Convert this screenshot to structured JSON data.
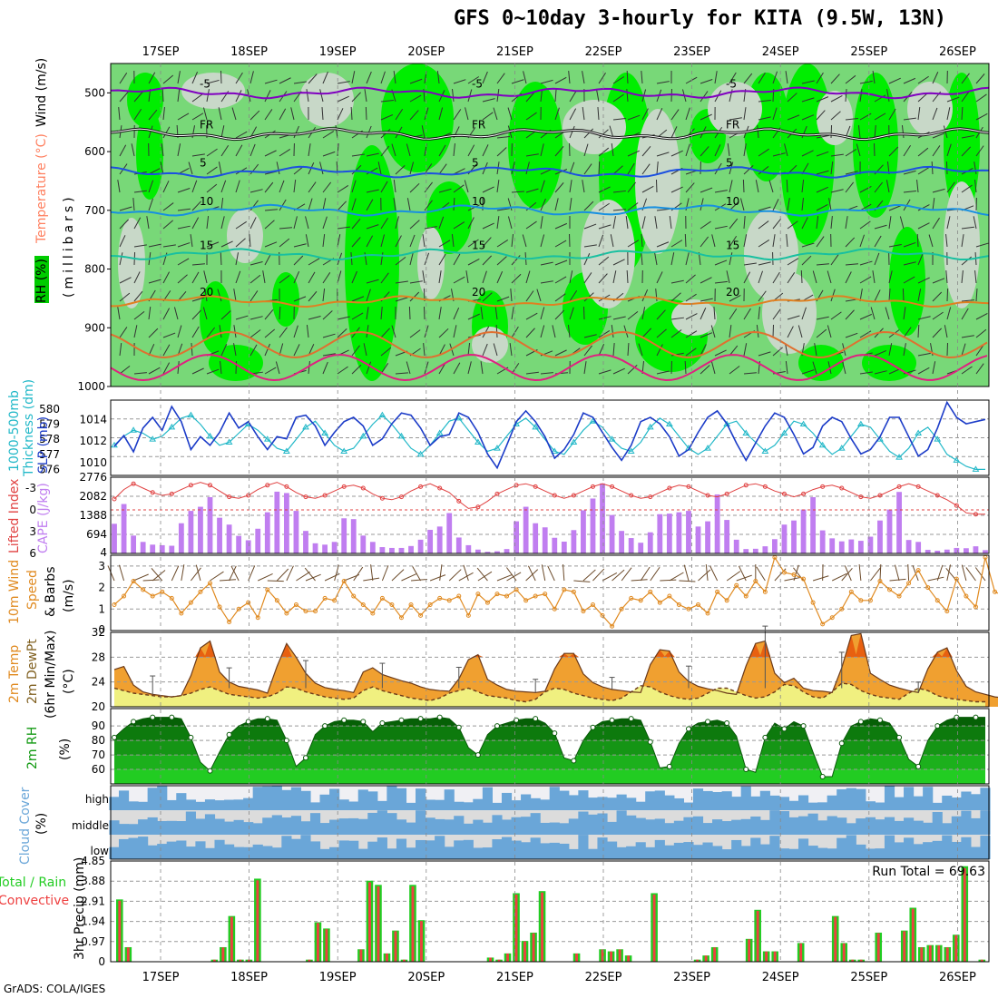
{
  "title": "GFS 0~10day 3-hourly for KITA (9.5W, 13N)",
  "credit": "GrADS: COLA/IGES",
  "dates": [
    "17SEP",
    "18SEP",
    "19SEP",
    "20SEP",
    "21SEP",
    "22SEP",
    "23SEP",
    "24SEP",
    "25SEP",
    "26SEP"
  ],
  "colors": {
    "rh_light": "#c8d8c8",
    "rh_mid": "#78d878",
    "rh_bright": "#00ee00",
    "slp": "#1c3cc8",
    "thickness": "#22b8c8",
    "lifted": "#e04040",
    "cape": "#c07ef0",
    "wind10": "#e08a20",
    "temp": "#f0a030",
    "temp_hot": "#e86010",
    "dew": "#f0f080",
    "rh2m": "#119911",
    "cloud": "#6aa6d8",
    "cloud_bg": "#dcdcdc",
    "precip_total": "#22cc22",
    "precip_conv": "#ee4040"
  },
  "labels": {
    "p1_rh": "RH (%)",
    "p1_temp": "Temperature (°C)",
    "p1_wind": "Wind (m/s)",
    "p1_units": "(millibars)",
    "p2_thick": "1000-500mb",
    "p2_thick2": "Thickness (dm)",
    "p2_slp": "SLP (mb)",
    "p3_lifted": "Lifted Index",
    "p3_cape": "CAPE (J/kg)",
    "p4_a": "10m Wind",
    "p4_b": "Speed",
    "p4_c": "& Barbs",
    "p4_units": "(m/s)",
    "p5_a": "2m Temp",
    "p5_b": "2m DewPt",
    "p5_c": "(6hr Min/Max)",
    "p5_units": "(°C)",
    "p6_a": "2m RH",
    "p6_units": "(%)",
    "p7_a": "Cloud Cover",
    "p7_units": "(%)",
    "p8_a": "Total / Rain",
    "p8_b": "Convective",
    "p8_units": "3hr Precip (mm)",
    "run_total": "Run Total = 69.63",
    "cloud_high": "high",
    "cloud_middle": "middle",
    "cloud_low": "low"
  },
  "chart_data": [
    {
      "type": "heatmap",
      "panel": "pressure-cross-section",
      "y_axis": "millibars",
      "ylim": [
        1000,
        450
      ],
      "y_ticks": [
        500,
        600,
        700,
        800,
        900,
        1000
      ],
      "temperature_contours": [
        {
          "label": "-5",
          "level_mb": 500
        },
        {
          "label": "FR",
          "level_mb": 570
        },
        {
          "label": "5",
          "level_mb": 635
        },
        {
          "label": "10",
          "level_mb": 700
        },
        {
          "label": "15",
          "level_mb": 775
        },
        {
          "label": "20",
          "level_mb": 855
        }
      ],
      "grid": true
    },
    {
      "type": "line",
      "panel": "slp-thickness",
      "slp_ticks": [
        1010,
        1012,
        1014
      ],
      "thickness_ticks": [
        576,
        577,
        578,
        579,
        580
      ],
      "series": [
        {
          "name": "SLP (mb)",
          "values": [
            1011.5,
            1012.5,
            1011,
            1013.2,
            1014.2,
            1013,
            1015.2,
            1013.8,
            1011.2,
            1012.4,
            1011.6,
            1012.8,
            1014.6,
            1013.2,
            1013.8,
            1012.4,
            1011.2,
            1012.4,
            1012.2,
            1014.2,
            1014.4,
            1013.4,
            1011.6,
            1012.8,
            1013.8,
            1014.2,
            1013.4,
            1011.6,
            1012.2,
            1013.6,
            1014.6,
            1014.4,
            1013.2,
            1011.6,
            1012.4,
            1012.6,
            1014.6,
            1014.2,
            1012.8,
            1010.8,
            1009.5,
            1011.6,
            1013.8,
            1014.8,
            1013.8,
            1012.4,
            1010.4,
            1011.2,
            1012.6,
            1014.6,
            1014.2,
            1012.8,
            1011.4,
            1010.2,
            1011.6,
            1013.8,
            1014.2,
            1013.6,
            1012.4,
            1010.6,
            1011.2,
            1012.8,
            1014.2,
            1014.8,
            1013.6,
            1011.8,
            1010.2,
            1011.8,
            1013.4,
            1014.6,
            1014.2,
            1012.6,
            1010.8,
            1011.4,
            1013.4,
            1014.2,
            1013.8,
            1012.2,
            1010.8,
            1011.2,
            1012.4,
            1014.2,
            1014.2,
            1012.4,
            1010.6,
            1011.2,
            1013.2,
            1015.6,
            1014.2,
            1013.6,
            1013.8,
            1014.0
          ]
        },
        {
          "name": "Thickness (dm)",
          "values": [
            577.6,
            578.2,
            578.6,
            578.4,
            578.0,
            578.2,
            578.8,
            579.4,
            579.6,
            579.0,
            578.2,
            577.6,
            577.8,
            578.4,
            579.0,
            578.6,
            578.0,
            577.4,
            577.2,
            578.0,
            578.8,
            579.2,
            578.4,
            577.6,
            577.2,
            577.4,
            578.2,
            579.0,
            579.6,
            579.0,
            578.2,
            577.4,
            577.0,
            577.6,
            578.4,
            579.2,
            579.4,
            578.6,
            577.8,
            577.2,
            577.4,
            578.2,
            579.0,
            579.4,
            578.8,
            578.0,
            577.2,
            577.0,
            577.8,
            578.6,
            579.2,
            578.8,
            578.0,
            577.4,
            577.2,
            577.8,
            578.8,
            579.4,
            579.0,
            578.2,
            577.4,
            577.0,
            577.4,
            578.2,
            579.0,
            579.2,
            578.4,
            577.8,
            577.2,
            577.6,
            578.4,
            579.2,
            579.0,
            578.4,
            577.6,
            577.0,
            577.4,
            578.2,
            579.0,
            578.8,
            578.0,
            577.2,
            576.8,
            577.4,
            578.4,
            578.8,
            578.0,
            577.0,
            576.6,
            576.2,
            576.0,
            576.0
          ]
        }
      ]
    },
    {
      "type": "bar",
      "panel": "lifted-index-cape",
      "cape_ticks": [
        694,
        1388,
        2082,
        2776
      ],
      "lifted_ticks": [
        -3,
        0,
        3,
        6
      ],
      "series": [
        {
          "name": "CAPE (J/kg)",
          "values": [
            1080,
            1800,
            650,
            420,
            320,
            300,
            280,
            1100,
            1550,
            1700,
            2050,
            1300,
            1050,
            640,
            480,
            900,
            1500,
            2250,
            2200,
            1550,
            820,
            370,
            320,
            420,
            1280,
            1250,
            650,
            420,
            230,
            200,
            200,
            270,
            500,
            860,
            980,
            1470,
            580,
            300,
            140,
            60,
            80,
            160,
            1170,
            1700,
            1100,
            950,
            570,
            430,
            850,
            1570,
            2000,
            2550,
            1400,
            820,
            560,
            390,
            770,
            1430,
            1450,
            1500,
            1550,
            980,
            1170,
            2150,
            1220,
            500,
            160,
            170,
            260,
            520,
            1050,
            1200,
            1600,
            2050,
            840,
            550,
            440,
            510,
            460,
            610,
            1200,
            1600,
            2240,
            490,
            420,
            130,
            100,
            140,
            200,
            190,
            260,
            120
          ]
        },
        {
          "name": "Lifted Index",
          "values": [
            -1.5,
            -2.8,
            -3.6,
            -3.0,
            -2.4,
            -2.0,
            -2.2,
            -2.8,
            -3.4,
            -3.8,
            -3.4,
            -2.6,
            -1.8,
            -1.6,
            -2.0,
            -2.8,
            -3.4,
            -3.8,
            -3.2,
            -2.4,
            -1.8,
            -1.6,
            -2.0,
            -2.6,
            -3.2,
            -3.4,
            -3.0,
            -2.2,
            -1.6,
            -1.4,
            -1.8,
            -2.6,
            -3.2,
            -3.6,
            -3.0,
            -2.4,
            -1.2,
            -0.2,
            -0.4,
            -1.2,
            -2.2,
            -2.8,
            -3.4,
            -3.6,
            -3.2,
            -2.6,
            -2.0,
            -1.6,
            -2.0,
            -2.6,
            -3.2,
            -3.6,
            -3.2,
            -2.6,
            -2.0,
            -1.6,
            -1.8,
            -2.4,
            -3.0,
            -3.4,
            -3.2,
            -2.6,
            -2.0,
            -1.8,
            -2.2,
            -2.8,
            -3.4,
            -3.6,
            -3.2,
            -2.6,
            -2.2,
            -1.8,
            -2.2,
            -2.8,
            -3.2,
            -3.4,
            -3.0,
            -2.4,
            -1.8,
            -1.6,
            -2.0,
            -2.6,
            -3.2,
            -3.6,
            -3.2,
            -2.6,
            -2.0,
            -1.4,
            -0.6,
            0.4,
            0.6,
            0.6
          ]
        }
      ]
    },
    {
      "type": "line",
      "panel": "10m-wind",
      "ylim": [
        0,
        3.5
      ],
      "y_ticks": [
        1,
        2,
        3
      ],
      "series": [
        {
          "name": "Speed",
          "values": [
            1.2,
            1.6,
            2.3,
            1.9,
            1.6,
            1.8,
            1.5,
            0.8,
            1.3,
            1.8,
            2.2,
            1.1,
            0.4,
            1.0,
            1.3,
            0.6,
            1.9,
            1.4,
            0.8,
            1.2,
            0.9,
            0.9,
            1.5,
            1.4,
            2.3,
            1.6,
            1.2,
            0.8,
            1.5,
            1.2,
            0.6,
            1.2,
            0.7,
            1.2,
            1.5,
            1.4,
            1.6,
            0.7,
            1.7,
            1.3,
            1.7,
            1.6,
            1.9,
            1.4,
            1.6,
            1.7,
            1.0,
            1.9,
            1.8,
            0.9,
            1.2,
            0.7,
            0.2,
            1.0,
            1.5,
            1.4,
            1.8,
            1.3,
            1.6,
            1.2,
            1.0,
            1.2,
            0.8,
            1.8,
            1.4,
            2.1,
            1.6,
            2.3,
            1.8,
            3.4,
            2.7,
            2.6,
            2.4,
            1.3,
            0.3,
            0.6,
            1.0,
            1.8,
            1.4,
            1.4,
            2.3,
            1.9,
            1.6,
            2.2,
            2.8,
            2.0,
            1.4,
            0.9,
            2.4,
            1.6,
            1.1,
            3.4,
            1.8,
            1.6,
            1.9,
            1.8
          ]
        }
      ]
    },
    {
      "type": "area",
      "panel": "2m-temp-dewpoint",
      "ylim": [
        20,
        32
      ],
      "y_ticks": [
        20,
        24,
        28,
        32
      ],
      "series": [
        {
          "name": "2m Temp",
          "values": [
            26.0,
            26.5,
            23.5,
            22.4,
            22.0,
            21.8,
            21.6,
            21.8,
            25.0,
            29.5,
            30.6,
            25.6,
            24.0,
            23.3,
            23.0,
            22.7,
            22.2,
            26.5,
            30.2,
            28.0,
            25.4,
            23.8,
            23.1,
            22.8,
            22.6,
            22.3,
            25.6,
            26.3,
            25.2,
            24.7,
            24.2,
            23.8,
            23.2,
            22.8,
            22.6,
            22.5,
            24.5,
            27.6,
            28.4,
            24.4,
            23.5,
            22.8,
            22.5,
            22.4,
            22.3,
            22.5,
            26.1,
            28.6,
            28.6,
            25.3,
            23.9,
            23.2,
            22.8,
            22.6,
            22.4,
            22.3,
            26.8,
            29.2,
            29.0,
            25.6,
            24.1,
            23.3,
            22.9,
            22.6,
            22.2,
            22.0,
            26.6,
            30.2,
            30.6,
            25.4,
            23.9,
            24.6,
            23.0,
            22.6,
            22.5,
            22.3,
            26.3,
            31.5,
            31.8,
            25.4,
            24.4,
            23.5,
            23.0,
            22.6,
            22.3,
            26.1,
            28.8,
            29.5,
            25.8,
            23.3,
            22.4,
            22.0,
            21.6,
            21.4
          ]
        },
        {
          "name": "2m DewPt",
          "values": [
            23.0,
            22.6,
            22.2,
            22.0,
            21.8,
            21.6,
            21.6,
            21.8,
            22.2,
            22.8,
            23.2,
            22.6,
            22.0,
            21.8,
            21.6,
            21.4,
            21.6,
            22.2,
            23.2,
            23.0,
            22.4,
            22.0,
            21.6,
            21.4,
            21.2,
            21.4,
            22.6,
            23.2,
            22.6,
            22.2,
            21.8,
            21.4,
            21.2,
            21.0,
            21.4,
            22.2,
            22.6,
            23.0,
            22.4,
            21.8,
            21.6,
            21.4,
            21.0,
            20.8,
            21.2,
            22.4,
            23.0,
            22.8,
            22.2,
            21.8,
            21.4,
            21.2,
            21.0,
            21.4,
            22.4,
            23.4,
            23.2,
            22.4,
            21.8,
            21.4,
            21.2,
            21.4,
            22.2,
            23.0,
            23.0,
            22.4,
            21.8,
            21.4,
            21.6,
            22.4,
            23.6,
            23.4,
            22.4,
            21.6,
            21.4,
            22.4,
            23.8,
            23.6,
            22.6,
            22.0,
            21.6,
            21.4,
            21.2,
            22.2,
            23.0,
            22.6,
            21.8,
            21.4,
            21.2,
            21.0,
            20.8,
            20.8
          ]
        }
      ]
    },
    {
      "type": "area",
      "panel": "2m-rh",
      "ylim": [
        50,
        100
      ],
      "y_ticks": [
        60,
        70,
        80,
        90
      ],
      "series": [
        {
          "name": "2m RH",
          "values": [
            82,
            88,
            93,
            95,
            96,
            96,
            96,
            95,
            82,
            65,
            59,
            72,
            84,
            90,
            93,
            95,
            95,
            94,
            80,
            62,
            68,
            84,
            90,
            93,
            94,
            94,
            93,
            86,
            92,
            93,
            94,
            95,
            95,
            95,
            96,
            95,
            89,
            75,
            70,
            84,
            90,
            92,
            94,
            95,
            95,
            92,
            85,
            68,
            66,
            80,
            89,
            93,
            94,
            95,
            95,
            94,
            79,
            61,
            62,
            78,
            88,
            92,
            93,
            94,
            92,
            83,
            60,
            58,
            82,
            92,
            88,
            93,
            90,
            72,
            55,
            55,
            78,
            90,
            93,
            95,
            94,
            92,
            82,
            67,
            62,
            80,
            90,
            94,
            96,
            96,
            96,
            96
          ]
        }
      ]
    },
    {
      "type": "area",
      "panel": "cloud-cover",
      "categories": [
        "high",
        "middle",
        "low"
      ]
    },
    {
      "type": "bar",
      "panel": "3hr-precip",
      "ylim": [
        0,
        4.85
      ],
      "y_ticks": [
        0,
        0.97,
        1.94,
        2.91,
        3.88,
        4.85
      ],
      "series": [
        {
          "name": "Total",
          "values": [
            3.0,
            0.7,
            0,
            0,
            0,
            0,
            0,
            0,
            0,
            0,
            0,
            0.1,
            0.7,
            2.2,
            0.1,
            0.1,
            4.0,
            0,
            0,
            0,
            0,
            0,
            0.1,
            1.9,
            1.6,
            0,
            0,
            0,
            0.6,
            3.9,
            3.7,
            0.4,
            1.5,
            0.1,
            3.7,
            2.0,
            0,
            0,
            0,
            0,
            0,
            0,
            0,
            0.2,
            0.1,
            0.4,
            3.3,
            1.0,
            1.4,
            3.4,
            0,
            0,
            0,
            0.4,
            0,
            0,
            0.6,
            0.5,
            0.6,
            0.3,
            0,
            0,
            3.3,
            0,
            0,
            0,
            0,
            0.1,
            0.3,
            0.7,
            0,
            0,
            0,
            1.1,
            2.5,
            0.5,
            0.5,
            0,
            0,
            0.9,
            0,
            0,
            0,
            2.2,
            0.9,
            0.1,
            0.1,
            0,
            1.4,
            0,
            0,
            1.5,
            2.6,
            0.7,
            0.8,
            0.8,
            0.7,
            1.3,
            4.6,
            0,
            0.1
          ]
        }
      ]
    }
  ]
}
